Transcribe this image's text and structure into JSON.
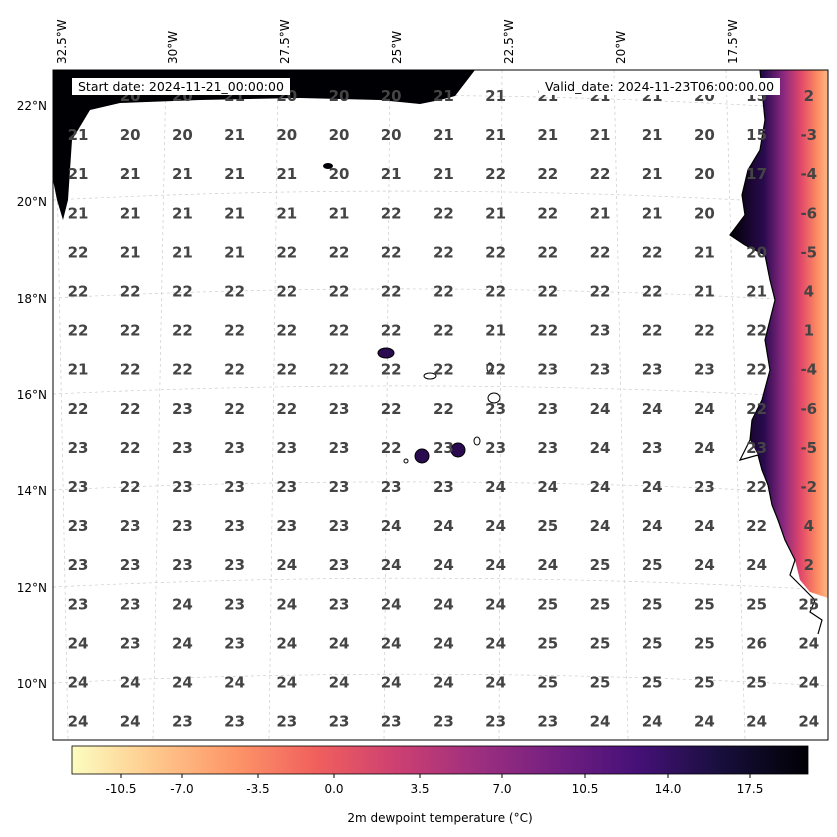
{
  "header": {
    "start_date": "Start date: 2024-11-21_00:00:00",
    "valid_date": "Valid_date: 2024-11-23T06:00:00.00"
  },
  "axes": {
    "lon_labels": [
      "32.5°W",
      "30°W",
      "27.5°W",
      "25°W",
      "22.5°W",
      "20°W",
      "17.5°W"
    ],
    "lat_labels": [
      "22°N",
      "20°N",
      "18°N",
      "16°N",
      "14°N",
      "12°N",
      "10°N"
    ]
  },
  "colorbar": {
    "label": "2m dewpoint temperature (°C)",
    "ticks": [
      "-10.5",
      "-7.0",
      "-3.5",
      "0.0",
      "3.5",
      "7.0",
      "10.5",
      "14.0",
      "17.5"
    ],
    "colormap": "magma_r",
    "colors": [
      "#fcfdbf",
      "#fec98d",
      "#fd9668",
      "#f1605d",
      "#cd4071",
      "#9e2f7f",
      "#721f81",
      "#451077",
      "#180f3d",
      "#000004"
    ]
  },
  "grid_values": [
    [
      "",
      "20",
      "20",
      "21",
      "20",
      "20",
      "20",
      "21",
      "21",
      "21",
      "21",
      "21",
      "20",
      "15",
      "2"
    ],
    [
      "21",
      "20",
      "20",
      "21",
      "20",
      "20",
      "20",
      "21",
      "21",
      "21",
      "21",
      "21",
      "20",
      "15",
      "-3"
    ],
    [
      "21",
      "21",
      "21",
      "21",
      "21",
      "20",
      "21",
      "21",
      "22",
      "22",
      "22",
      "21",
      "20",
      "17",
      "-4"
    ],
    [
      "21",
      "21",
      "21",
      "21",
      "21",
      "21",
      "22",
      "22",
      "21",
      "22",
      "21",
      "21",
      "20",
      "",
      "-6"
    ],
    [
      "22",
      "21",
      "21",
      "21",
      "22",
      "22",
      "22",
      "22",
      "22",
      "22",
      "22",
      "22",
      "21",
      "20",
      "-5"
    ],
    [
      "22",
      "22",
      "22",
      "22",
      "22",
      "22",
      "22",
      "22",
      "22",
      "22",
      "22",
      "22",
      "21",
      "21",
      "4"
    ],
    [
      "22",
      "22",
      "22",
      "22",
      "22",
      "22",
      "22",
      "22",
      "21",
      "22",
      "23",
      "22",
      "22",
      "22",
      "1"
    ],
    [
      "21",
      "22",
      "22",
      "22",
      "22",
      "22",
      "22",
      "22",
      "22",
      "23",
      "23",
      "23",
      "23",
      "22",
      "-4"
    ],
    [
      "22",
      "22",
      "23",
      "22",
      "22",
      "23",
      "22",
      "22",
      "23",
      "23",
      "24",
      "24",
      "24",
      "22",
      "-6"
    ],
    [
      "23",
      "22",
      "23",
      "23",
      "23",
      "23",
      "22",
      "23",
      "23",
      "23",
      "24",
      "23",
      "24",
      "23",
      "-5"
    ],
    [
      "23",
      "22",
      "23",
      "23",
      "23",
      "23",
      "23",
      "23",
      "24",
      "24",
      "24",
      "24",
      "23",
      "22",
      "-2"
    ],
    [
      "23",
      "23",
      "23",
      "23",
      "23",
      "23",
      "24",
      "24",
      "24",
      "25",
      "24",
      "24",
      "24",
      "22",
      "4"
    ],
    [
      "23",
      "23",
      "23",
      "23",
      "24",
      "23",
      "24",
      "24",
      "24",
      "24",
      "25",
      "25",
      "24",
      "24",
      "2"
    ],
    [
      "23",
      "23",
      "24",
      "23",
      "24",
      "23",
      "24",
      "24",
      "24",
      "25",
      "25",
      "25",
      "25",
      "25",
      "25"
    ],
    [
      "24",
      "23",
      "24",
      "23",
      "24",
      "24",
      "24",
      "24",
      "24",
      "25",
      "25",
      "25",
      "25",
      "26",
      "24"
    ],
    [
      "24",
      "24",
      "24",
      "24",
      "24",
      "24",
      "24",
      "24",
      "24",
      "25",
      "25",
      "25",
      "25",
      "25",
      "24"
    ],
    [
      "24",
      "24",
      "23",
      "23",
      "23",
      "23",
      "23",
      "23",
      "23",
      "23",
      "24",
      "24",
      "24",
      "24",
      "24"
    ]
  ]
}
